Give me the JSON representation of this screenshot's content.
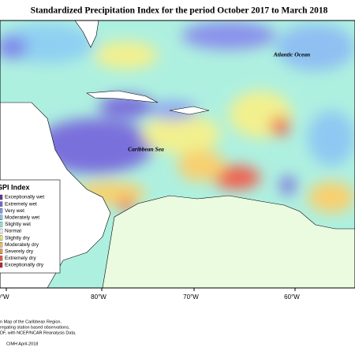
{
  "title": "Standardized Precipitation Index for the period October 2017 to March 2018",
  "labels": {
    "atlantic": "Atlantic Ocean",
    "caribbean": "Caribbean Sea"
  },
  "legend": {
    "title": "SPI Index",
    "items": [
      {
        "label": "Exceptionally wet",
        "color": "#6a3d9a"
      },
      {
        "label": "Extremely wet",
        "color": "#7b72e0"
      },
      {
        "label": "Very wet",
        "color": "#8fa6f2"
      },
      {
        "label": "Moderately wet",
        "color": "#8ed4f2"
      },
      {
        "label": "Slightly wet",
        "color": "#a6f0e2"
      },
      {
        "label": "Normal",
        "color": "#ffffff"
      },
      {
        "label": "Slightly dry",
        "color": "#f2f08e"
      },
      {
        "label": "Moderately dry",
        "color": "#f8d070"
      },
      {
        "label": "Severely dry",
        "color": "#f7a25e"
      },
      {
        "label": "Extremely dry",
        "color": "#ef6150"
      },
      {
        "label": "Exceptionally dry",
        "color": "#c22f2f"
      }
    ]
  },
  "longitudes": [
    "0°W",
    "80°W",
    "70°W",
    "60°W"
  ],
  "footnote": [
    "n Map of the Caribbean Region.",
    "regating station based observations,",
    "DF, with NCEP/NCAR Reanalysis Data.",
    "CIMH April-2018"
  ]
}
